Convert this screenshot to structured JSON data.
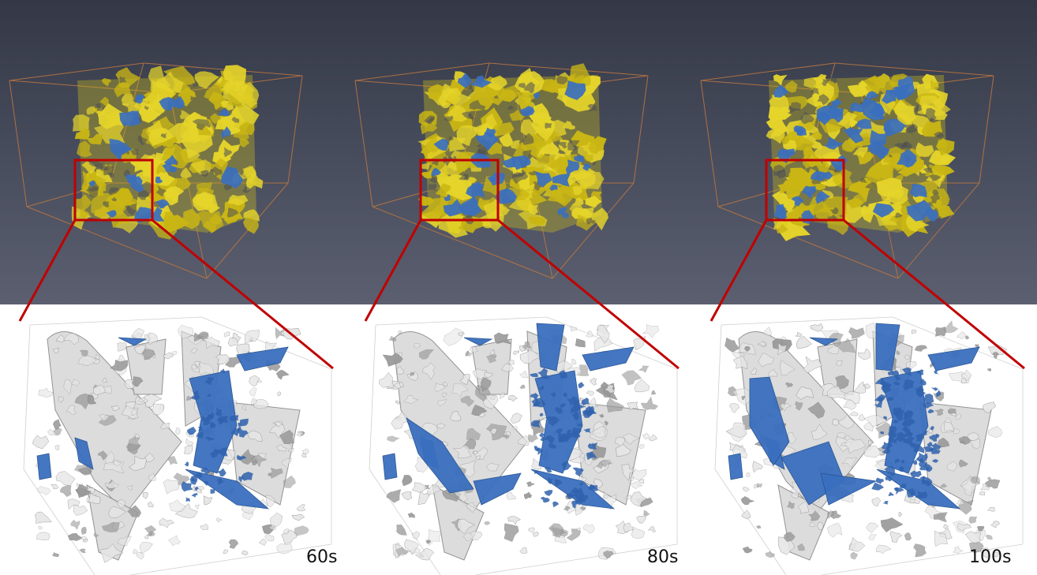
{
  "panels": [
    {
      "time_label": "60s"
    },
    {
      "time_label": "80s"
    },
    {
      "time_label": "100s"
    }
  ],
  "colors": {
    "background_top": "#343846",
    "background_mid": "#5b5f6f",
    "bottom_background": "#ffffff",
    "pore_yellow": "#d4c21a",
    "fluid_blue": "#3a6fbf",
    "frame_orange": "#c07840",
    "zoom_box_red": "#c00000",
    "grain_gray": "#d9d9d9"
  },
  "icons": [
    "zoom-region-box",
    "zoom-connector-line"
  ]
}
